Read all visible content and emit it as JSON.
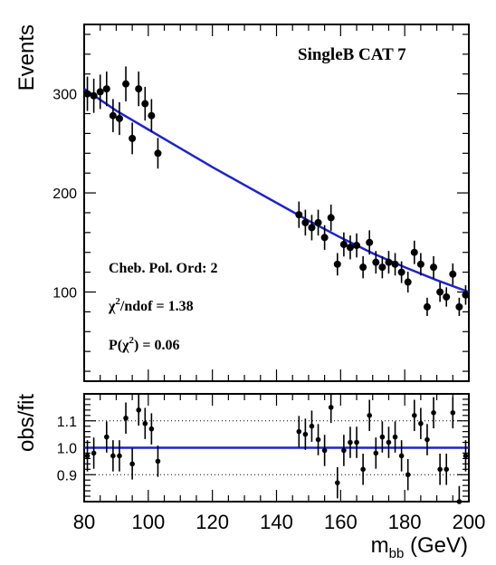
{
  "chart_data": [
    {
      "type": "scatter",
      "panel": "main",
      "ylabel": "Events",
      "xlim": [
        80,
        200
      ],
      "ylim": [
        10,
        370
      ],
      "yticks": [
        100,
        200,
        300
      ],
      "annotations": {
        "category": "SingleB CAT 7",
        "fit_order": "Cheb. Pol. Ord: 2",
        "chi2_prefix": "χ",
        "chi2_sup": "2",
        "chi2_suffix": "/ndof = 1.38",
        "pchi2_prefix": "P(χ",
        "pchi2_sup": "2",
        "pchi2_suffix": ") = 0.06"
      },
      "fit_color": "#1f23c9",
      "data_color": "#000000",
      "points": {
        "x": [
          81,
          83,
          85,
          87,
          89,
          91,
          93,
          95,
          97,
          99,
          101,
          103,
          147,
          149,
          151,
          153,
          155,
          157,
          159,
          161,
          163,
          165,
          167,
          169,
          171,
          173,
          175,
          177,
          179,
          181,
          183,
          185,
          187,
          189,
          191,
          193,
          195,
          197,
          199
        ],
        "y": [
          300,
          298,
          302,
          305,
          278,
          275,
          310,
          255,
          305,
          290,
          278,
          240,
          178,
          170,
          165,
          170,
          155,
          175,
          128,
          148,
          145,
          147,
          125,
          150,
          130,
          125,
          130,
          128,
          120,
          110,
          140,
          128,
          85,
          125,
          100,
          95,
          118,
          85,
          97
        ]
      },
      "fit": {
        "x": [
          80,
          90,
          100,
          110,
          120,
          130,
          140,
          150,
          160,
          170,
          180,
          190,
          200
        ],
        "y": [
          305,
          283,
          264,
          245,
          226,
          208,
          190,
          172,
          155,
          139,
          125,
          112,
          100
        ]
      }
    },
    {
      "type": "scatter",
      "panel": "ratio",
      "ylabel": "obs/fit",
      "xlabel_main": "m",
      "xlabel_sub": "bb",
      "xlabel_unit": " (GeV)",
      "xlim": [
        80,
        200
      ],
      "ylim": [
        0.8,
        1.2
      ],
      "yticks": [
        0.9,
        1.0,
        1.1
      ],
      "yticklabels": [
        "0.9",
        "1.0",
        "1.1"
      ],
      "xticks": [
        80,
        100,
        120,
        140,
        160,
        180,
        200
      ],
      "reference_line": 1.0,
      "gridlines": [
        0.9,
        1.1
      ],
      "points": {
        "x": [
          81,
          83,
          87,
          89,
          91,
          93,
          95,
          97,
          99,
          101,
          103,
          147,
          149,
          151,
          153,
          155,
          157,
          159,
          161,
          163,
          165,
          167,
          169,
          171,
          173,
          175,
          177,
          179,
          181,
          183,
          185,
          187,
          189,
          191,
          193,
          195,
          197,
          199
        ],
        "y": [
          0.97,
          0.98,
          1.04,
          0.97,
          0.97,
          1.11,
          0.94,
          1.14,
          1.09,
          1.07,
          0.95,
          1.06,
          1.05,
          1.08,
          1.03,
          0.99,
          1.15,
          0.87,
          0.99,
          1.02,
          1.02,
          0.92,
          1.12,
          0.98,
          1.04,
          1.02,
          1.04,
          0.97,
          0.9,
          1.12,
          1.09,
          1.03,
          1.13,
          0.92,
          0.92,
          1.13,
          0.8,
          0.97
        ]
      }
    }
  ]
}
